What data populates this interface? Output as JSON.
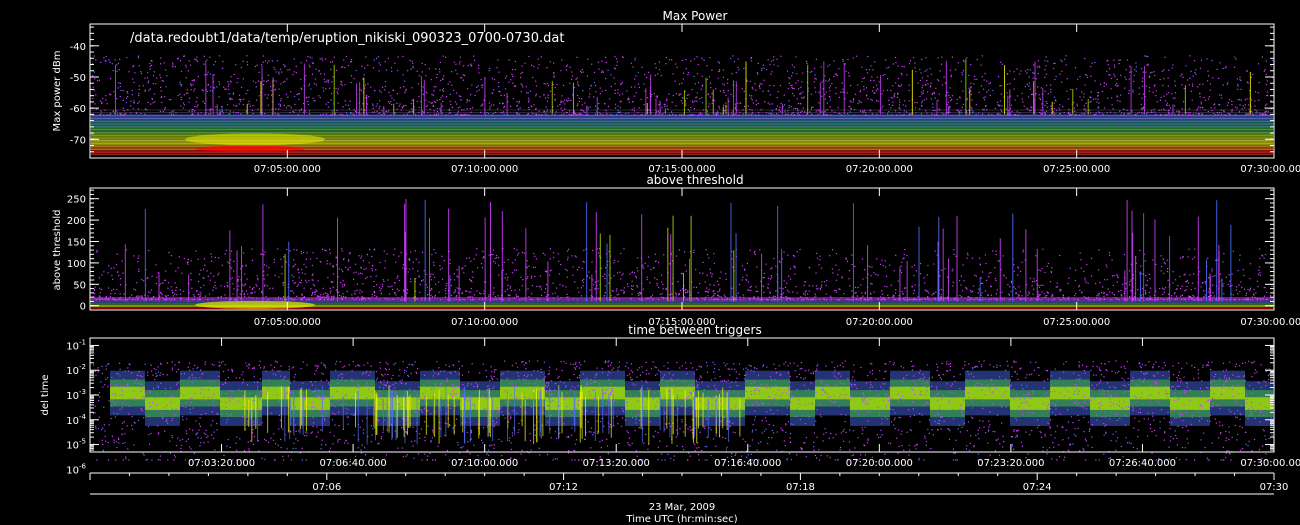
{
  "colors": {
    "background": "#000000",
    "axes": "#ffffff",
    "scale": [
      "#a020f0",
      "#d040ff",
      "#5070ff",
      "#20a0a0",
      "#40c040",
      "#b0e000",
      "#ffff00",
      "#ff8000",
      "#ff0000"
    ]
  },
  "footer": {
    "date": "23 Mar, 2009",
    "xlabel": "Time UTC (hr:min:sec)",
    "hour_axis": [
      "07:06",
      "07:12",
      "07:18",
      "07:24",
      "07:30"
    ]
  },
  "chart_data": [
    {
      "type": "scatter",
      "title": "Max Power",
      "annotation": "/data.redoubt1/data/temp/eruption_nikiski_090323_0700-0730.dat",
      "ylabel": "Max power dBm",
      "xlim": [
        "07:00:00.000",
        "07:30:00.000"
      ],
      "ylim": [
        -76,
        -33
      ],
      "yticks": [
        "-40",
        "-50",
        "-60",
        "-70"
      ],
      "xticks": [
        "07:05:00.000",
        "07:10:00.000",
        "07:15:00.000",
        "07:20:00.000",
        "07:25:00.000",
        "07:30:00.000"
      ],
      "description": "density of triggers; floor near -74 dBm, dense band -74 to -62 dBm, bursts up to about -43 dBm"
    },
    {
      "type": "scatter",
      "title": "above threshold",
      "ylabel": "above threshold",
      "xlim": [
        "07:00:00.000",
        "07:30:00.000"
      ],
      "ylim": [
        -10,
        275
      ],
      "yticks": [
        "250",
        "200",
        "150",
        "100",
        "50",
        "0"
      ],
      "xticks": [
        "07:05:00.000",
        "07:10:00.000",
        "07:15:00.000",
        "07:20:00.000",
        "07:25:00.000",
        "07:30:00.000"
      ],
      "description": "dense band 0-20, spikes reaching about 250"
    },
    {
      "type": "scatter",
      "title": "time between triggers",
      "ylabel": "del time",
      "yscale": "log",
      "xlim": [
        "07:00:00.000",
        "07:30:00.000"
      ],
      "ylim": [
        5e-06,
        0.2
      ],
      "yticks": [
        "10^-1",
        "10^-2",
        "10^-3",
        "10^-4",
        "10^-5",
        "10^-6"
      ],
      "xticks": [
        "07:03:20.000",
        "07:06:40.000",
        "07:10:00.000",
        "07:13:20.000",
        "07:16:40.000",
        "07:20:00.000",
        "07:23:20.000",
        "07:26:40.000",
        "07:30:00.000"
      ],
      "description": "dense band between 1e-4 and 1e-3 alternating in blocks, sparse points down to 1e-6"
    }
  ]
}
